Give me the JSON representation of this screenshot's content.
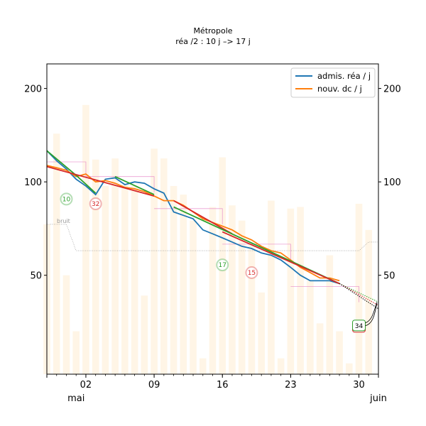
{
  "chart_data": {
    "type": "line",
    "title": "Métropole",
    "subtitle": "réa /2 : 10 j –> 17 j",
    "xlabel": "",
    "ylabel": "",
    "y_scale": "log",
    "ylim": [
      24,
      240
    ],
    "xlim": [
      "2020-04-28",
      "2020-06-01"
    ],
    "y_ticks": [
      50,
      100,
      200
    ],
    "x_ticks": [
      {
        "date": "2020-04-28",
        "label": ""
      },
      {
        "date": "2020-05-02",
        "label": "02"
      },
      {
        "date": "2020-05-09",
        "label": "09"
      },
      {
        "date": "2020-05-16",
        "label": "16"
      },
      {
        "date": "2020-05-23",
        "label": "23"
      },
      {
        "date": "2020-05-30",
        "label": "30"
      },
      {
        "date": "2020-06-01",
        "label": ""
      }
    ],
    "month_labels": [
      {
        "date": "2020-05-01",
        "label": "mai"
      },
      {
        "date": "2020-06-01",
        "label": "juin"
      }
    ],
    "grid": false,
    "legend_position": "top-right",
    "legend": [
      {
        "label": "admis. réa / j",
        "color": "#1f77b4"
      },
      {
        "label": "nouv. dc / j",
        "color": "#ff7f0e"
      }
    ],
    "series": [
      {
        "name": "admis. réa / j",
        "color": "#1f77b4",
        "x": [
          "2020-04-28",
          "2020-04-29",
          "2020-04-30",
          "2020-05-01",
          "2020-05-02",
          "2020-05-03",
          "2020-05-04",
          "2020-05-05",
          "2020-05-06",
          "2020-05-07",
          "2020-05-08",
          "2020-05-09",
          "2020-05-10",
          "2020-05-11",
          "2020-05-12",
          "2020-05-13",
          "2020-05-14",
          "2020-05-15",
          "2020-05-16",
          "2020-05-17",
          "2020-05-18",
          "2020-05-19",
          "2020-05-20",
          "2020-05-21",
          "2020-05-22",
          "2020-05-23",
          "2020-05-24",
          "2020-05-25",
          "2020-05-26",
          "2020-05-27",
          "2020-05-28"
        ],
        "y": [
          126,
          117,
          110,
          102,
          97,
          91,
          102,
          103,
          98,
          100,
          99,
          95,
          92,
          80,
          78,
          76,
          70,
          68,
          66,
          64,
          62,
          61,
          59,
          58,
          56,
          53,
          50,
          48,
          48,
          48,
          47
        ]
      },
      {
        "name": "nouv. dc / j",
        "color": "#ff7f0e",
        "x": [
          "2020-04-28",
          "2020-04-29",
          "2020-04-30",
          "2020-05-01",
          "2020-05-02",
          "2020-05-03",
          "2020-05-04",
          "2020-05-05",
          "2020-05-06",
          "2020-05-07",
          "2020-05-08",
          "2020-05-09",
          "2020-05-10",
          "2020-05-11",
          "2020-05-12",
          "2020-05-13",
          "2020-05-14",
          "2020-05-15",
          "2020-05-16",
          "2020-05-17",
          "2020-05-18",
          "2020-05-19",
          "2020-05-20",
          "2020-05-21",
          "2020-05-22",
          "2020-05-23",
          "2020-05-24",
          "2020-05-25",
          "2020-05-26",
          "2020-05-27",
          "2020-05-28"
        ],
        "y": [
          113,
          111,
          109,
          104,
          106,
          100,
          101,
          99,
          96,
          95,
          93,
          90,
          87,
          87,
          84,
          80,
          76,
          74,
          72,
          70,
          67,
          65,
          62,
          60,
          59,
          56,
          53,
          51,
          49,
          49,
          48
        ]
      }
    ],
    "fits": [
      {
        "color": "#2ca02c",
        "x": [
          "2020-04-28",
          "2020-05-01",
          "2020-05-03"
        ],
        "y": [
          126,
          105,
          92
        ]
      },
      {
        "color": "#d62728",
        "x": [
          "2020-04-28",
          "2020-05-09"
        ],
        "y": [
          112,
          90
        ]
      },
      {
        "color": "#2ca02c",
        "x": [
          "2020-05-05",
          "2020-05-09"
        ],
        "y": [
          104,
          91
        ]
      },
      {
        "color": "#d62728",
        "x": [
          "2020-05-11",
          "2020-05-17"
        ],
        "y": [
          87,
          68
        ]
      },
      {
        "color": "#2ca02c",
        "x": [
          "2020-05-11",
          "2020-05-28"
        ],
        "y": [
          83,
          47
        ]
      },
      {
        "color": "#d62728",
        "x": [
          "2020-05-16",
          "2020-05-28"
        ],
        "y": [
          69,
          47
        ]
      }
    ],
    "projections": [
      {
        "color": "#2ca02c",
        "x": [
          "2020-05-28",
          "2020-06-01"
        ],
        "y": [
          47,
          41
        ]
      },
      {
        "color": "#d62728",
        "x": [
          "2020-05-28",
          "2020-06-01"
        ],
        "y": [
          47,
          40
        ]
      },
      {
        "color": "#000000",
        "x": [
          "2020-05-28",
          "2020-06-01"
        ],
        "y": [
          47,
          39
        ]
      }
    ],
    "bars": {
      "color": "#fff5e6",
      "x": [
        "2020-04-28",
        "2020-04-29",
        "2020-04-30",
        "2020-05-01",
        "2020-05-02",
        "2020-05-03",
        "2020-05-04",
        "2020-05-05",
        "2020-05-06",
        "2020-05-07",
        "2020-05-08",
        "2020-05-09",
        "2020-05-10",
        "2020-05-11",
        "2020-05-12",
        "2020-05-13",
        "2020-05-14",
        "2020-05-15",
        "2020-05-16",
        "2020-05-17",
        "2020-05-18",
        "2020-05-19",
        "2020-05-20",
        "2020-05-21",
        "2020-05-22",
        "2020-05-23",
        "2020-05-24",
        "2020-05-25",
        "2020-05-26",
        "2020-05-27",
        "2020-05-28",
        "2020-05-29",
        "2020-05-30",
        "2020-05-31"
      ],
      "y": [
        73,
        143,
        50,
        33,
        177,
        118,
        97,
        119,
        98,
        97,
        43,
        128,
        119,
        97,
        91,
        75,
        27,
        83,
        120,
        84,
        75,
        63,
        44,
        87,
        27,
        82,
        83,
        48,
        35,
        58,
        33,
        26,
        85,
        70
      ]
    },
    "step_boxes": [
      {
        "x0": "2020-04-28",
        "x1": "2020-05-02",
        "y": 116
      },
      {
        "x0": "2020-05-02",
        "x1": "2020-05-09",
        "y": 104
      },
      {
        "x0": "2020-05-09",
        "x1": "2020-05-16",
        "y": 82
      },
      {
        "x0": "2020-05-16",
        "x1": "2020-05-23",
        "y": 63
      },
      {
        "x0": "2020-05-23",
        "x1": "2020-05-30",
        "y": 46
      }
    ],
    "noise_band": {
      "label": "bruit",
      "x": [
        "2020-04-28",
        "2020-04-30",
        "2020-05-01",
        "2020-05-30",
        "2020-05-31",
        "2020-06-01"
      ],
      "y": [
        73,
        73,
        60,
        60,
        64,
        64
      ]
    },
    "circle_labels": [
      {
        "text": "10",
        "x": "2020-04-30",
        "y": 88,
        "color": "#2ca02c"
      },
      {
        "text": "32",
        "x": "2020-05-03",
        "y": 85,
        "color": "#d62728"
      },
      {
        "text": "17",
        "x": "2020-05-16",
        "y": 54,
        "color": "#2ca02c"
      },
      {
        "text": "15",
        "x": "2020-05-19",
        "y": 51,
        "color": "#d62728"
      }
    ],
    "box_label": {
      "text": "34",
      "x": "2020-05-30",
      "y": 34
    }
  }
}
